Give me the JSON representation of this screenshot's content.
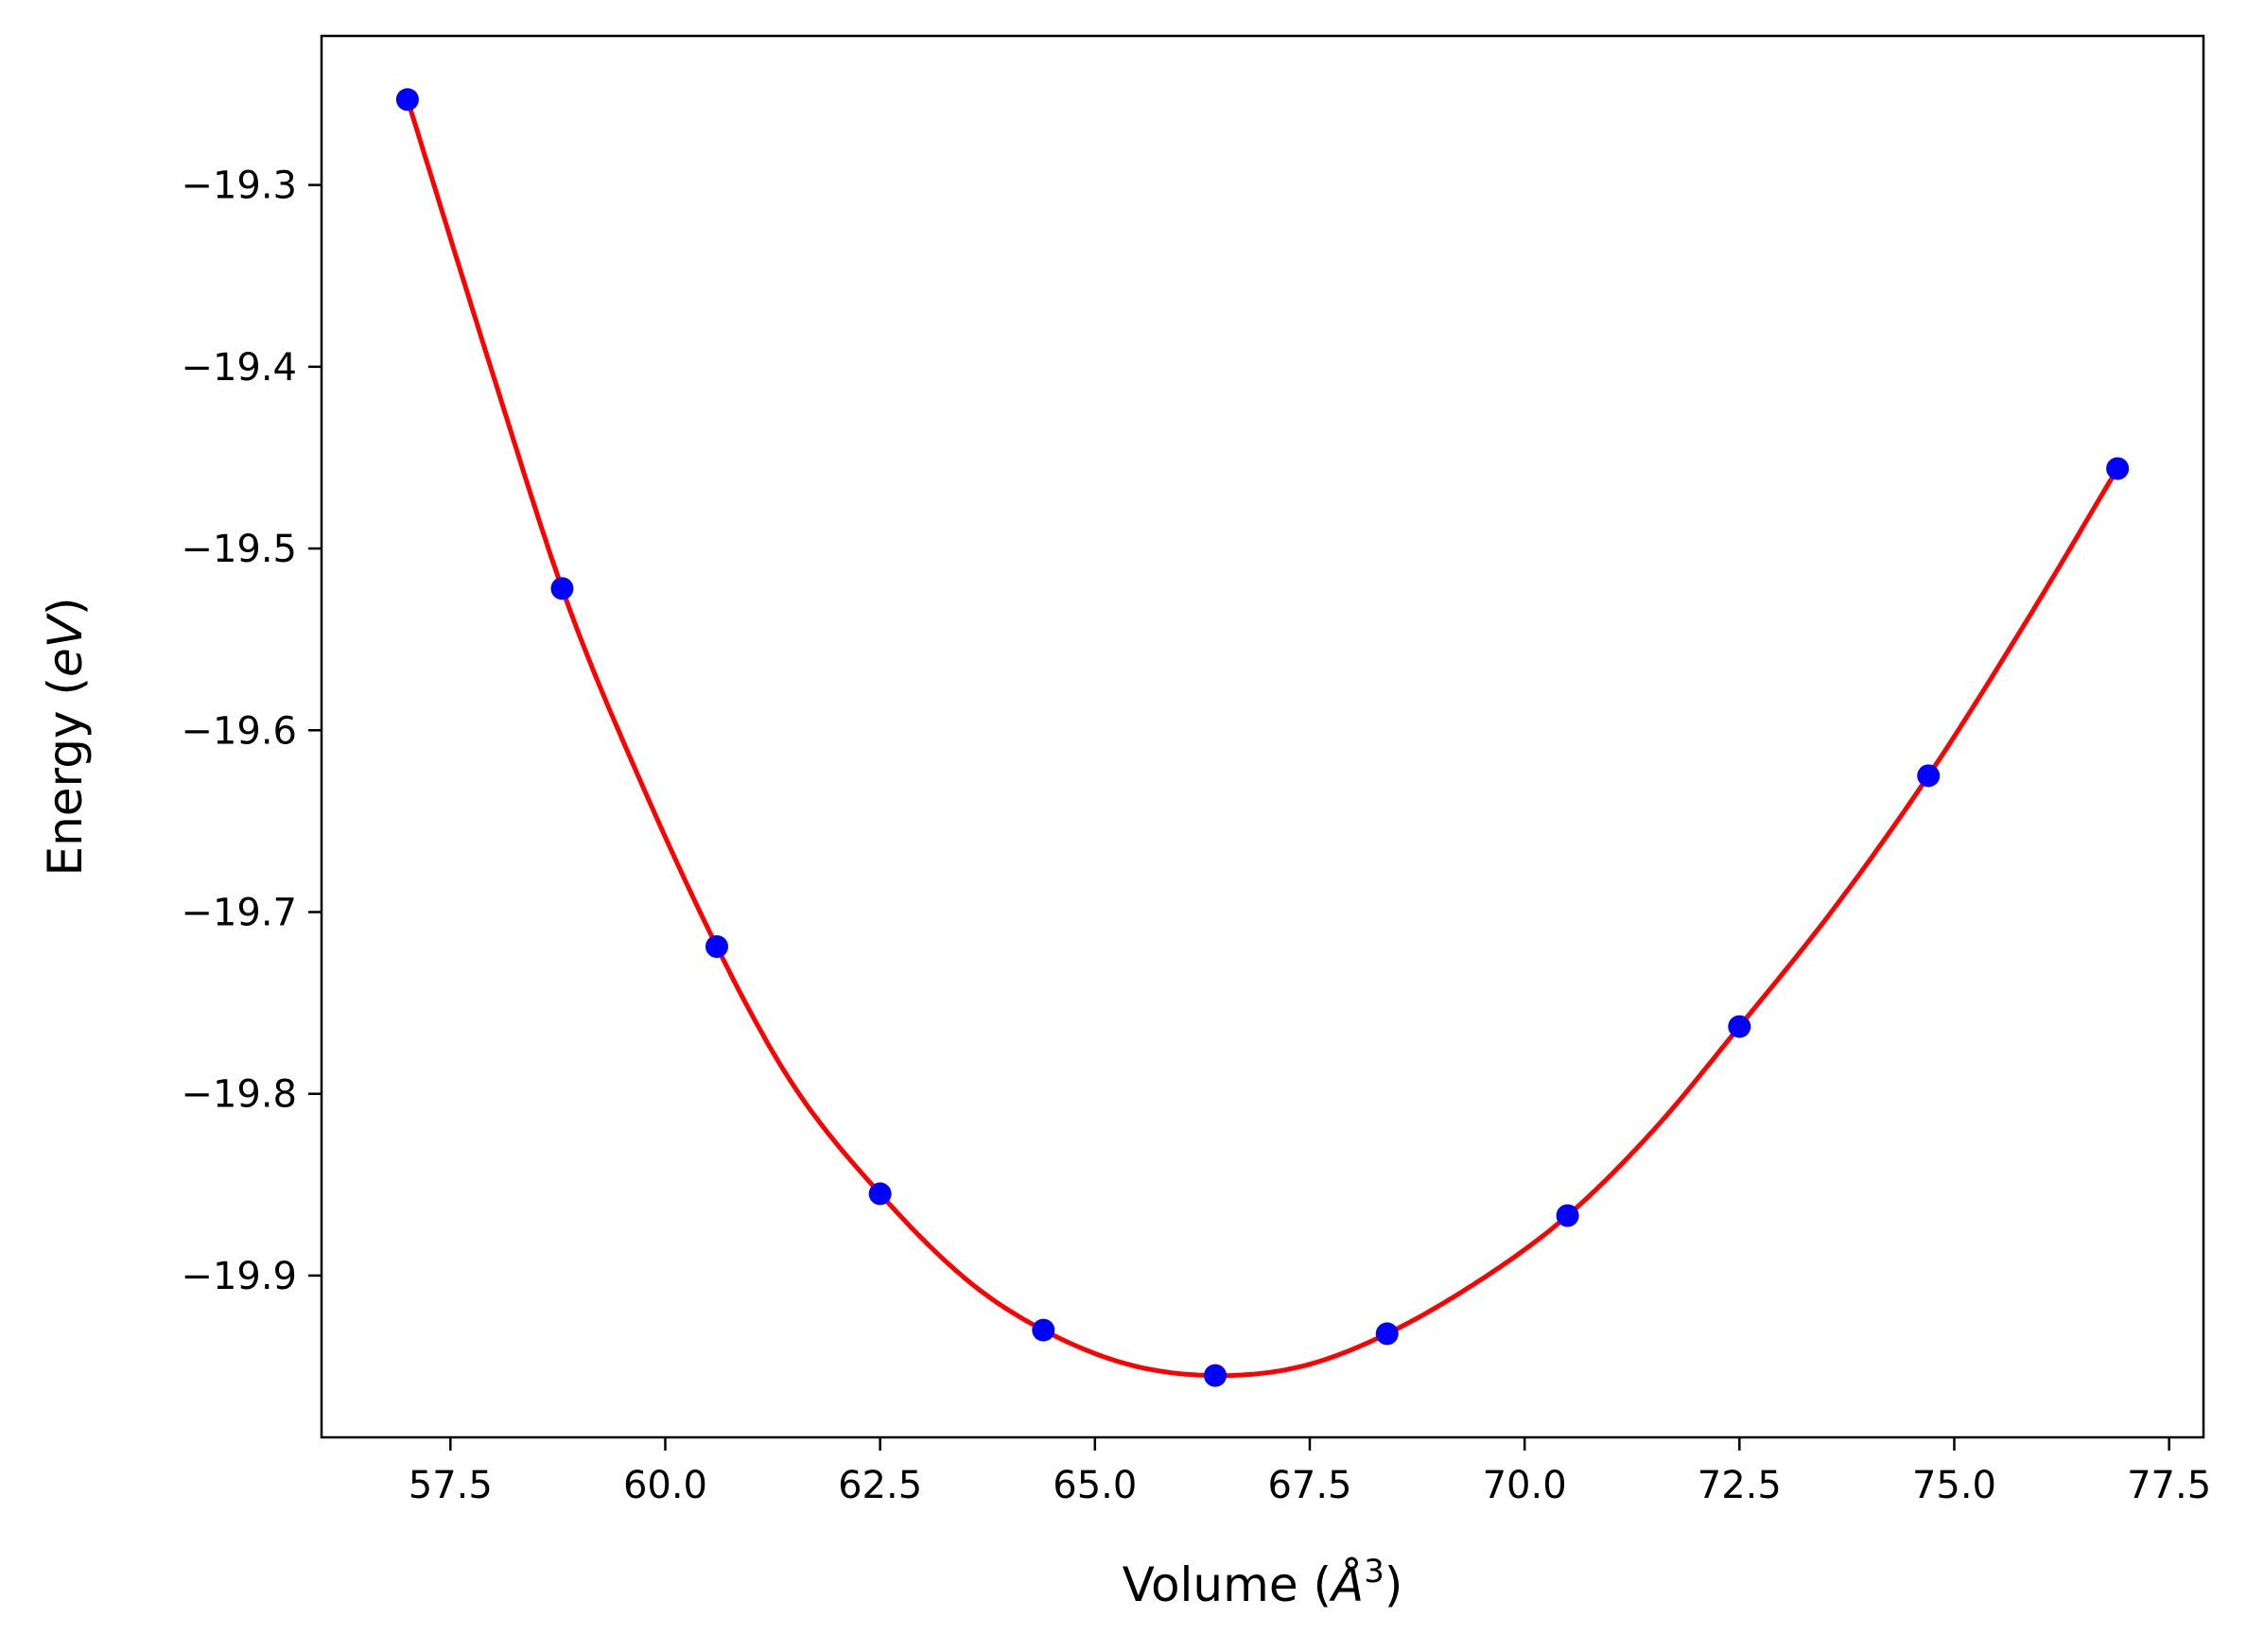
{
  "chart_data": {
    "type": "scatter",
    "title": "",
    "xlabel_parts": {
      "prefix": "Volume (",
      "italic": "Å",
      "sup": "3",
      "suffix": ")"
    },
    "ylabel_parts": {
      "prefix": "Energy (",
      "italic": "eV",
      "suffix": ")"
    },
    "xlim": [
      56.0,
      77.9
    ],
    "ylim": [
      -19.989,
      -19.218
    ],
    "xticks": [
      57.5,
      60.0,
      62.5,
      65.0,
      67.5,
      70.0,
      72.5,
      75.0,
      77.5
    ],
    "xtick_labels": [
      "57.5",
      "60.0",
      "62.5",
      "65.0",
      "67.5",
      "70.0",
      "72.5",
      "75.0",
      "77.5"
    ],
    "yticks": [
      -19.3,
      -19.4,
      -19.5,
      -19.6,
      -19.7,
      -19.8,
      -19.9
    ],
    "ytick_labels": [
      "−19.3",
      "−19.4",
      "−19.5",
      "−19.6",
      "−19.7",
      "−19.8",
      "−19.9"
    ],
    "grid": false,
    "series": [
      {
        "kind": "points",
        "color": "#0000ff",
        "x": [
          57.0,
          58.8,
          60.6,
          62.5,
          64.4,
          66.4,
          68.4,
          70.5,
          72.5,
          74.7,
          76.9
        ],
        "y": [
          -19.253,
          -19.522,
          -19.719,
          -19.855,
          -19.93,
          -19.955,
          -19.932,
          -19.867,
          -19.763,
          -19.625,
          -19.456
        ]
      },
      {
        "kind": "fit-curve",
        "color": "#ff0000",
        "x": [
          57.0,
          58.0,
          58.8,
          59.5,
          60.6,
          61.5,
          62.5,
          63.5,
          64.4,
          65.4,
          66.4,
          67.4,
          68.4,
          69.5,
          70.5,
          71.5,
          72.5,
          73.6,
          74.7,
          75.8,
          76.9
        ],
        "y": [
          -19.253,
          -19.405,
          -19.522,
          -19.605,
          -19.719,
          -19.796,
          -19.855,
          -19.902,
          -19.93,
          -19.949,
          -19.955,
          -19.95,
          -19.932,
          -19.902,
          -19.867,
          -19.82,
          -19.763,
          -19.698,
          -19.625,
          -19.543,
          -19.456
        ]
      }
    ]
  }
}
